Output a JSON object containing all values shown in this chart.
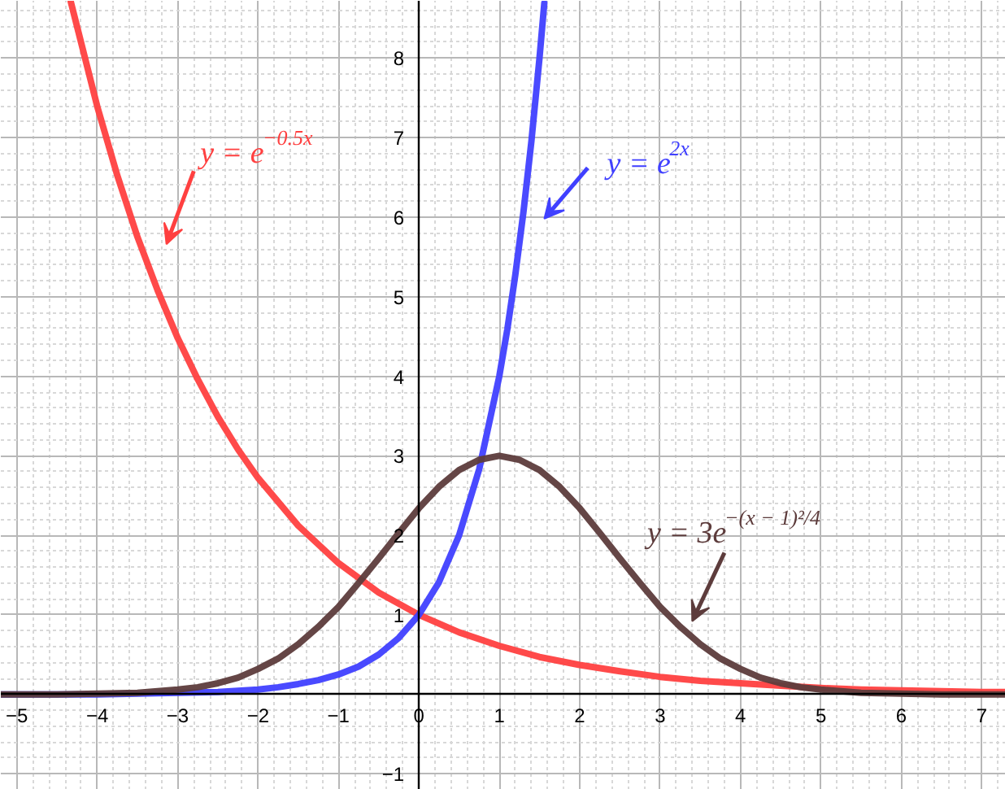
{
  "chart_data": {
    "type": "line",
    "xlim": [
      -5.2,
      7.3
    ],
    "ylim": [
      -1.2,
      8.72
    ],
    "xticks": [
      {
        "value": -5,
        "label": "−5"
      },
      {
        "value": -4,
        "label": "−4"
      },
      {
        "value": -3,
        "label": "−3"
      },
      {
        "value": -2,
        "label": "−2"
      },
      {
        "value": -1,
        "label": "−1"
      },
      0,
      1,
      2,
      3,
      4,
      5,
      6,
      7
    ],
    "yticks": [
      {
        "value": -1,
        "label": "−1"
      },
      1,
      2,
      3,
      4,
      5,
      6,
      7,
      8
    ],
    "grid": true,
    "series": [
      {
        "name": "y = e$^{−0.5x}$",
        "color": "#ff4040",
        "x": [
          -4.33,
          -4,
          -3.75,
          -3.5,
          -3.25,
          -3,
          -2.75,
          -2.5,
          -2.25,
          -2,
          -1.5,
          -1,
          -0.5,
          0,
          0.5,
          1,
          1.5,
          2,
          2.5,
          3,
          3.5,
          4,
          4.5,
          5,
          5.5,
          6,
          6.5,
          7,
          7.3
        ],
        "values": [
          8.71,
          7.39,
          6.52,
          5.75,
          5.08,
          4.48,
          3.96,
          3.49,
          3.08,
          2.72,
          2.12,
          1.65,
          1.28,
          1.0,
          0.78,
          0.61,
          0.47,
          0.37,
          0.29,
          0.22,
          0.17,
          0.14,
          0.11,
          0.08,
          0.06,
          0.05,
          0.04,
          0.03,
          0.03
        ]
      },
      {
        "name": "y = e$^{2x}$",
        "color": "#4040ff",
        "x": [
          -5.2,
          -4,
          -3,
          -2.5,
          -2,
          -1.75,
          -1.5,
          -1.25,
          -1,
          -0.75,
          -0.5,
          -0.25,
          0,
          0.25,
          0.5,
          0.75,
          1,
          1.1,
          1.2,
          1.3,
          1.4,
          1.5,
          1.56
        ],
        "values": [
          0.0,
          0.0,
          0.02,
          0.03,
          0.06,
          0.09,
          0.13,
          0.18,
          0.25,
          0.35,
          0.5,
          0.71,
          1.0,
          1.41,
          2.0,
          2.83,
          4.0,
          4.59,
          5.28,
          6.06,
          6.96,
          8.0,
          8.69
        ]
      },
      {
        "name": "y = 3e$^{−(x − 1)²/4}$",
        "color": "#5d3c3c",
        "x": [
          -5.2,
          -4.5,
          -4,
          -3.5,
          -3,
          -2.75,
          -2.5,
          -2.25,
          -2,
          -1.75,
          -1.5,
          -1.25,
          -1,
          -0.75,
          -0.5,
          -0.25,
          0,
          0.25,
          0.5,
          0.75,
          1,
          1.25,
          1.5,
          1.75,
          2,
          2.25,
          2.5,
          2.75,
          3,
          3.25,
          3.5,
          3.75,
          4,
          4.25,
          4.5,
          4.75,
          5,
          5.5,
          6,
          6.5,
          7,
          7.3
        ],
        "values": [
          0.0,
          0.0,
          0.01,
          0.02,
          0.06,
          0.09,
          0.14,
          0.21,
          0.32,
          0.45,
          0.63,
          0.85,
          1.1,
          1.4,
          1.71,
          2.03,
          2.34,
          2.61,
          2.82,
          2.95,
          3.0,
          2.95,
          2.82,
          2.61,
          2.34,
          2.03,
          1.71,
          1.4,
          1.1,
          0.85,
          0.63,
          0.45,
          0.32,
          0.21,
          0.14,
          0.09,
          0.06,
          0.02,
          0.01,
          0.0,
          0.0,
          0.0
        ]
      }
    ]
  }
}
